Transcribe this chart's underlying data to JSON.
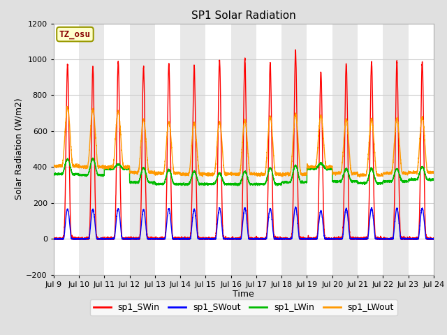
{
  "title": "SP1 Solar Radiation",
  "xlabel": "Time",
  "ylabel": "Solar Radiation (W/m2)",
  "ylim": [
    -200,
    1200
  ],
  "yticks": [
    -200,
    0,
    200,
    400,
    600,
    800,
    1000,
    1200
  ],
  "n_days": 15,
  "start_day": 9,
  "points_per_day": 288,
  "colors": {
    "sp1_SWin": "#ff0000",
    "sp1_SWout": "#0000ff",
    "sp1_LWin": "#00bb00",
    "sp1_LWout": "#ff9900"
  },
  "legend_labels": [
    "sp1_SWin",
    "sp1_SWout",
    "sp1_LWin",
    "sp1_LWout"
  ],
  "tz_label": "TZ_osu",
  "tz_box_facecolor": "#ffffcc",
  "tz_text_color": "#880000",
  "tz_border_color": "#999900",
  "fig_bg": "#e0e0e0",
  "plot_bg": "#ffffff",
  "band_even": "#ffffff",
  "band_odd": "#e8e8e8",
  "grid_color": "#d0d0d0",
  "sw_in_peaks": [
    970,
    960,
    985,
    955,
    975,
    960,
    995,
    1000,
    980,
    1045,
    930,
    975,
    985,
    985,
    985
  ],
  "sw_out_peaks": [
    165,
    165,
    168,
    162,
    168,
    165,
    170,
    172,
    168,
    175,
    155,
    168,
    170,
    170,
    170
  ],
  "lw_in_night": [
    360,
    355,
    390,
    315,
    305,
    305,
    305,
    305,
    305,
    315,
    390,
    320,
    310,
    320,
    330
  ],
  "lw_in_day": [
    445,
    445,
    415,
    395,
    385,
    375,
    365,
    375,
    395,
    410,
    420,
    390,
    390,
    390,
    400
  ],
  "lw_out_night": [
    405,
    400,
    400,
    370,
    365,
    360,
    360,
    360,
    360,
    360,
    400,
    365,
    355,
    365,
    370
  ],
  "lw_out_day": [
    730,
    720,
    710,
    665,
    650,
    645,
    650,
    660,
    680,
    695,
    685,
    665,
    665,
    670,
    675
  ]
}
